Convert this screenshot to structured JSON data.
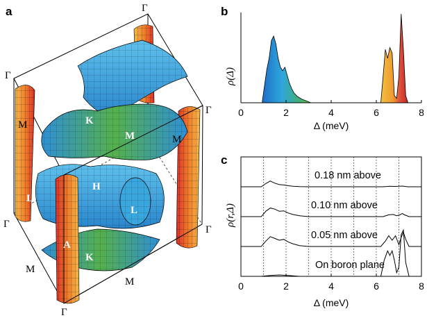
{
  "panels": {
    "a": {
      "letter": "a"
    },
    "b": {
      "letter": "b"
    },
    "c": {
      "letter": "c"
    }
  },
  "fermi_surface": {
    "symmetry_points": [
      "Γ",
      "Γ",
      "Γ",
      "Γ",
      "Γ",
      "Γ",
      "M",
      "M",
      "M",
      "M",
      "L",
      "L",
      "A",
      "K",
      "K",
      "M",
      "H"
    ]
  },
  "colors": {
    "blue_sheet": "#3aa0dc",
    "green_region": "#4fb35a",
    "orange_sheet": "#f0a63a",
    "red_sheet": "#d73a26",
    "frame_line": "#000000"
  },
  "chart_data": [
    {
      "type": "area",
      "panel": "b",
      "ylabel": "ρ(Δ)",
      "xlabel": "Δ (meV)",
      "xlim": [
        0,
        8
      ],
      "xticks": [
        0,
        2,
        4,
        6,
        8
      ],
      "series": [
        {
          "x": [
            0.95,
            1.05,
            1.15,
            1.25,
            1.35,
            1.45,
            1.55,
            1.65,
            1.75,
            1.85,
            1.95,
            2.05,
            2.15,
            2.25,
            2.35,
            2.5,
            2.7,
            2.9,
            3.1
          ],
          "values": [
            0.02,
            0.2,
            0.38,
            0.5,
            0.7,
            0.75,
            0.66,
            0.5,
            0.4,
            0.36,
            0.4,
            0.31,
            0.22,
            0.16,
            0.11,
            0.07,
            0.04,
            0.02,
            0.0
          ]
        },
        {
          "x": [
            6.2,
            6.3,
            6.4,
            6.5,
            6.6,
            6.7,
            6.8,
            6.9,
            7.0,
            7.1,
            7.2,
            7.3,
            7.4
          ],
          "values": [
            0.0,
            0.3,
            0.6,
            0.5,
            0.62,
            0.56,
            0.08,
            0.05,
            0.3,
            1.0,
            0.6,
            0.08,
            0.0
          ]
        }
      ]
    },
    {
      "type": "line",
      "panel": "c",
      "ylabel": "ρ(r,Δ)",
      "xlabel": "Δ (meV)",
      "xlim": [
        0,
        8
      ],
      "xticks": [
        0,
        2,
        4,
        6,
        8
      ],
      "gridlines_x": [
        1,
        2,
        3,
        4,
        5,
        6,
        7
      ],
      "series": [
        {
          "name": "0.18 nm above",
          "x": [
            0.9,
            1.1,
            1.3,
            1.5,
            1.7,
            1.9,
            2.1,
            2.3,
            2.6,
            3.0,
            6.3,
            6.6,
            6.8,
            7.0,
            7.15,
            7.4
          ],
          "values": [
            0,
            0.18,
            0.32,
            0.2,
            0.12,
            0.1,
            0.06,
            0.03,
            0.01,
            0,
            0,
            0.03,
            0.02,
            0.03,
            0.04,
            0
          ]
        },
        {
          "name": "0.10 nm above",
          "x": [
            0.9,
            1.1,
            1.3,
            1.5,
            1.7,
            1.9,
            2.1,
            2.3,
            2.6,
            3.0,
            6.3,
            6.55,
            6.75,
            6.9,
            7.05,
            7.15,
            7.25,
            7.45
          ],
          "values": [
            0,
            0.3,
            0.48,
            0.42,
            0.3,
            0.32,
            0.2,
            0.12,
            0.05,
            0,
            0,
            0.1,
            0.12,
            0.05,
            0.1,
            0.18,
            0.1,
            0
          ]
        },
        {
          "name": "0.05 nm above",
          "x": [
            0.9,
            1.1,
            1.3,
            1.5,
            1.7,
            1.9,
            2.1,
            2.3,
            2.6,
            3.0,
            6.2,
            6.4,
            6.55,
            6.7,
            6.85,
            7.0,
            7.1,
            7.2,
            7.3,
            7.45
          ],
          "values": [
            0,
            0.3,
            0.55,
            0.45,
            0.35,
            0.4,
            0.25,
            0.15,
            0.05,
            0,
            0,
            0.3,
            0.6,
            0.35,
            0.6,
            0.1,
            0.5,
            0.8,
            0.4,
            0
          ]
        },
        {
          "name": "On boron plane",
          "x": [
            0.9,
            1.3,
            1.7,
            2.1,
            2.6,
            6.2,
            6.35,
            6.5,
            6.6,
            6.7,
            6.8,
            6.9,
            7.0,
            7.1,
            7.2,
            7.3,
            7.45
          ],
          "values": [
            0,
            0.02,
            0.03,
            0.02,
            0,
            0,
            0.35,
            0.55,
            0.45,
            0.55,
            0.35,
            0.08,
            0.2,
            0.9,
            1.0,
            0.3,
            0
          ]
        }
      ]
    }
  ]
}
